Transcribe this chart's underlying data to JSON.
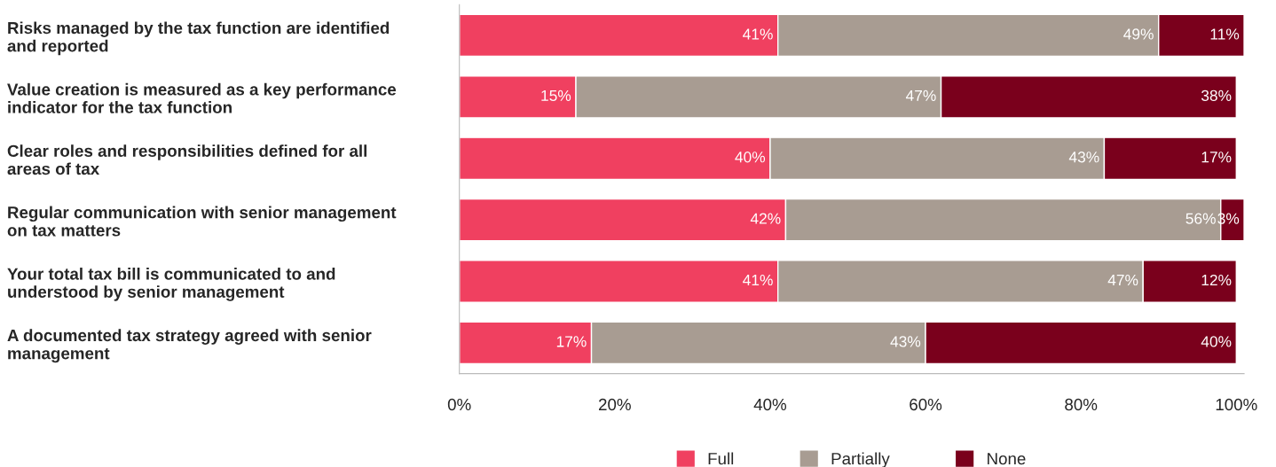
{
  "chart_data": {
    "type": "bar",
    "orientation": "horizontal",
    "stacked": true,
    "categories": [
      "Risks managed by the tax function are identified\nand reported",
      "Value creation is measured as a key performance\nindicator for the tax function",
      "Clear roles and responsibilities defined for all\nareas of tax",
      "Regular communication with senior management\non tax matters",
      "Your total tax bill is communicated to and\nunderstood by senior management",
      "A documented tax strategy agreed with senior\nmanagement"
    ],
    "series": [
      {
        "name": "Full",
        "color": "#f04060",
        "values": [
          41,
          15,
          40,
          42,
          41,
          17
        ],
        "value_labels": [
          "41%",
          "15%",
          "40%",
          "42%",
          "41%",
          "17%"
        ]
      },
      {
        "name": "Partially",
        "color": "#a89c92",
        "values": [
          49,
          47,
          43,
          56,
          47,
          43
        ],
        "value_labels": [
          "49%",
          "47%",
          "43%",
          "56%",
          "47%",
          "43%"
        ]
      },
      {
        "name": "None",
        "color": "#7a001c",
        "values": [
          11,
          38,
          17,
          3,
          12,
          40
        ],
        "value_labels": [
          "11%",
          "38%",
          "17%",
          "3%",
          "12%",
          "40%"
        ]
      }
    ],
    "xlim": [
      0,
      101
    ],
    "xticks": [
      {
        "value": 0,
        "label": "0%"
      },
      {
        "value": 20,
        "label": "20%"
      },
      {
        "value": 40,
        "label": "40%"
      },
      {
        "value": 60,
        "label": "60%"
      },
      {
        "value": 80,
        "label": "80%"
      },
      {
        "value": 100,
        "label": "100%"
      }
    ],
    "grid": false,
    "legend": "bottom"
  }
}
